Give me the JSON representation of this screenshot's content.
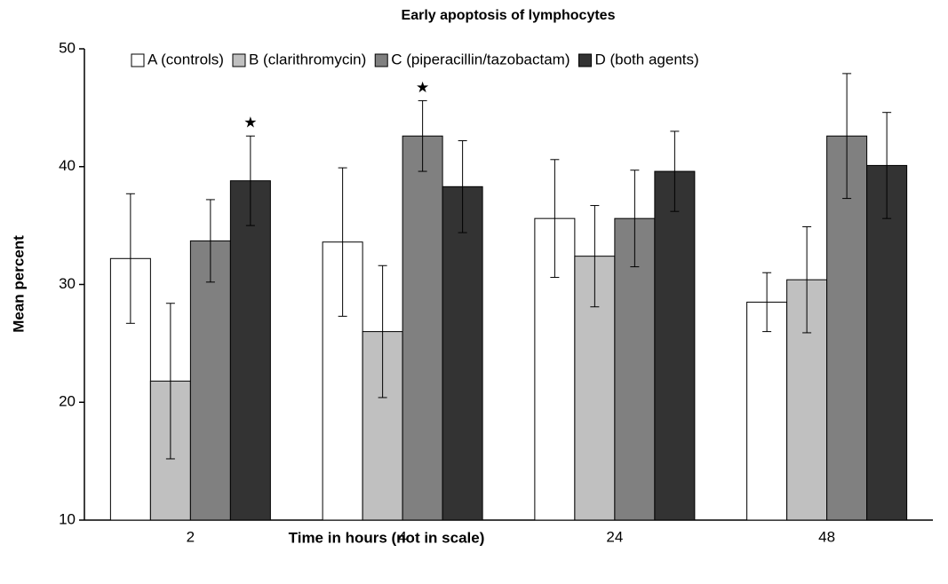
{
  "chart_data": {
    "type": "bar",
    "title": "Early apoptosis of lymphocytes",
    "x_label": "Time in hours (not in scale)",
    "y_label": "Mean percent",
    "categories": [
      "2",
      "4",
      "24",
      "48"
    ],
    "series": [
      {
        "name": "A (controls)",
        "color": "#ffffff",
        "values": [
          32.2,
          33.6,
          35.6,
          28.5
        ],
        "errors": [
          5.5,
          6.3,
          5.0,
          2.5
        ]
      },
      {
        "name": "B (clarithromycin)",
        "color": "#c0c0c0",
        "values": [
          21.8,
          26.0,
          32.4,
          30.4
        ],
        "errors": [
          6.6,
          5.6,
          4.3,
          4.5
        ]
      },
      {
        "name": "C (piperacillin/tazobactam)",
        "color": "#808080",
        "values": [
          33.7,
          42.6,
          35.6,
          42.6
        ],
        "errors": [
          3.5,
          3.0,
          4.1,
          5.3
        ]
      },
      {
        "name": "D (both agents)",
        "color": "#333333",
        "values": [
          38.8,
          38.3,
          39.6,
          40.1
        ],
        "errors": [
          3.8,
          3.9,
          3.4,
          4.5
        ]
      }
    ],
    "annotations": [
      {
        "text": "★",
        "category": "2",
        "series": "D (both agents)"
      },
      {
        "text": "★",
        "category": "4",
        "series": "C (piperacillin/tazobactam)"
      }
    ],
    "ylim": [
      10,
      50
    ],
    "yticks": [
      10,
      20,
      30,
      40,
      50
    ],
    "grid": false,
    "legend": "top"
  }
}
